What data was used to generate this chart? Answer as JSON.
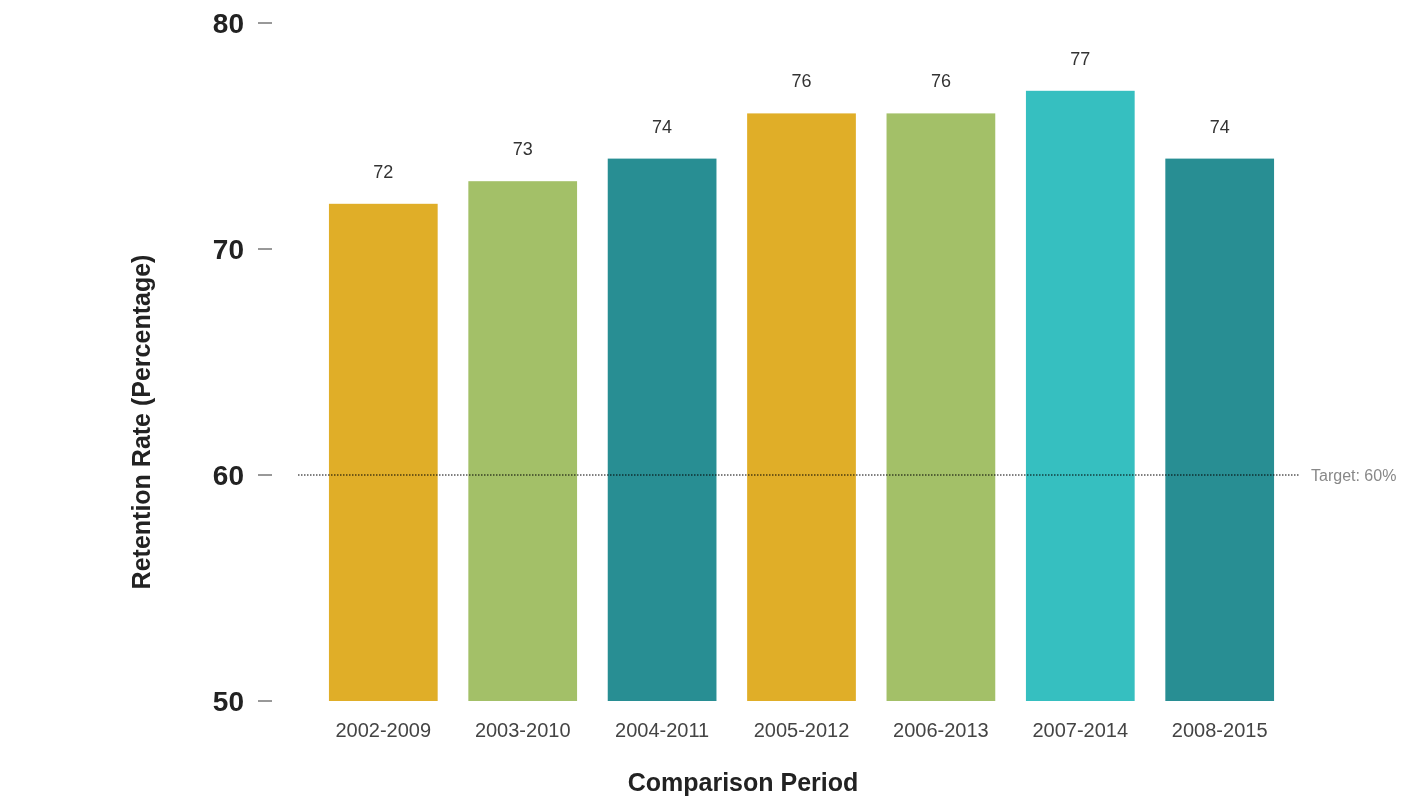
{
  "chart_data": {
    "type": "bar",
    "xlabel": "Comparison Period",
    "ylabel": "Retention Rate (Percentage)",
    "categories": [
      "2002-2009",
      "2003-2010",
      "2004-2011",
      "2005-2012",
      "2006-2013",
      "2007-2014",
      "2008-2015"
    ],
    "values": [
      72,
      73,
      74,
      76,
      76,
      77,
      74
    ],
    "colors": [
      "#e0ae28",
      "#a3c068",
      "#288e93",
      "#e0ae28",
      "#a3c068",
      "#36bfc0",
      "#288e93"
    ],
    "ylim": [
      50,
      80
    ],
    "yticks": [
      50,
      60,
      70,
      80
    ],
    "grid": false,
    "data_labels": true,
    "ref_lines": [
      {
        "axis": "y",
        "value": 60,
        "label": "Target: 60%",
        "color": "#000000",
        "line_style": "dotted"
      }
    ]
  }
}
